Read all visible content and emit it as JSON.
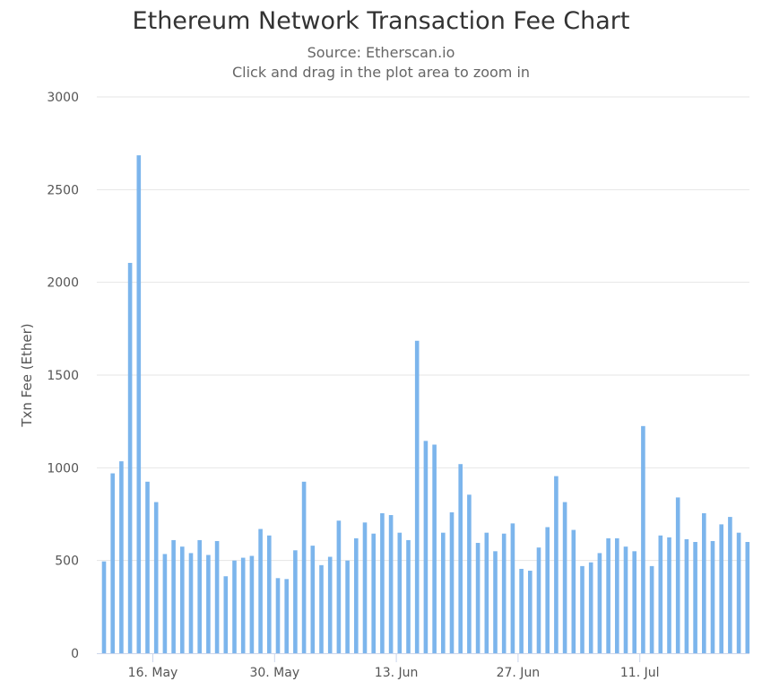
{
  "header": {
    "title": "Ethereum Network Transaction Fee Chart",
    "subtitle": "Source: Etherscan.io",
    "hint": "Click and drag in the plot area to zoom in"
  },
  "colors": {
    "bar": "#7cb5ec",
    "grid": "#e6e6e6",
    "axis": "#ccd6eb"
  },
  "chart_data": {
    "type": "bar",
    "title": "Ethereum Network Transaction Fee Chart",
    "subtitle": "Source: Etherscan.io",
    "ylabel": "Txn Fee (Ether)",
    "xlabel": "",
    "ylim": [
      0,
      3000
    ],
    "yticks": [
      0,
      500,
      1000,
      1500,
      2000,
      2500,
      3000
    ],
    "xtick_labels": [
      {
        "label": "16. May",
        "index": 5
      },
      {
        "label": "30. May",
        "index": 19
      },
      {
        "label": "13. Jun",
        "index": 33
      },
      {
        "label": "27. Jun",
        "index": 47
      },
      {
        "label": "11. Jul",
        "index": 61
      }
    ],
    "grid": true,
    "legend": "none",
    "values": [
      495,
      970,
      1035,
      2105,
      2685,
      925,
      815,
      535,
      610,
      575,
      540,
      610,
      530,
      605,
      415,
      500,
      515,
      525,
      670,
      635,
      405,
      400,
      555,
      925,
      580,
      475,
      520,
      715,
      500,
      620,
      705,
      645,
      755,
      745,
      650,
      610,
      1685,
      1145,
      1125,
      650,
      760,
      1020,
      855,
      595,
      650,
      550,
      645,
      700,
      455,
      445,
      570,
      680,
      955,
      815,
      665,
      470,
      490,
      540,
      620,
      620,
      575,
      550,
      1225,
      470,
      635,
      625,
      840,
      615,
      600,
      755,
      605,
      695,
      735,
      650,
      600
    ]
  }
}
